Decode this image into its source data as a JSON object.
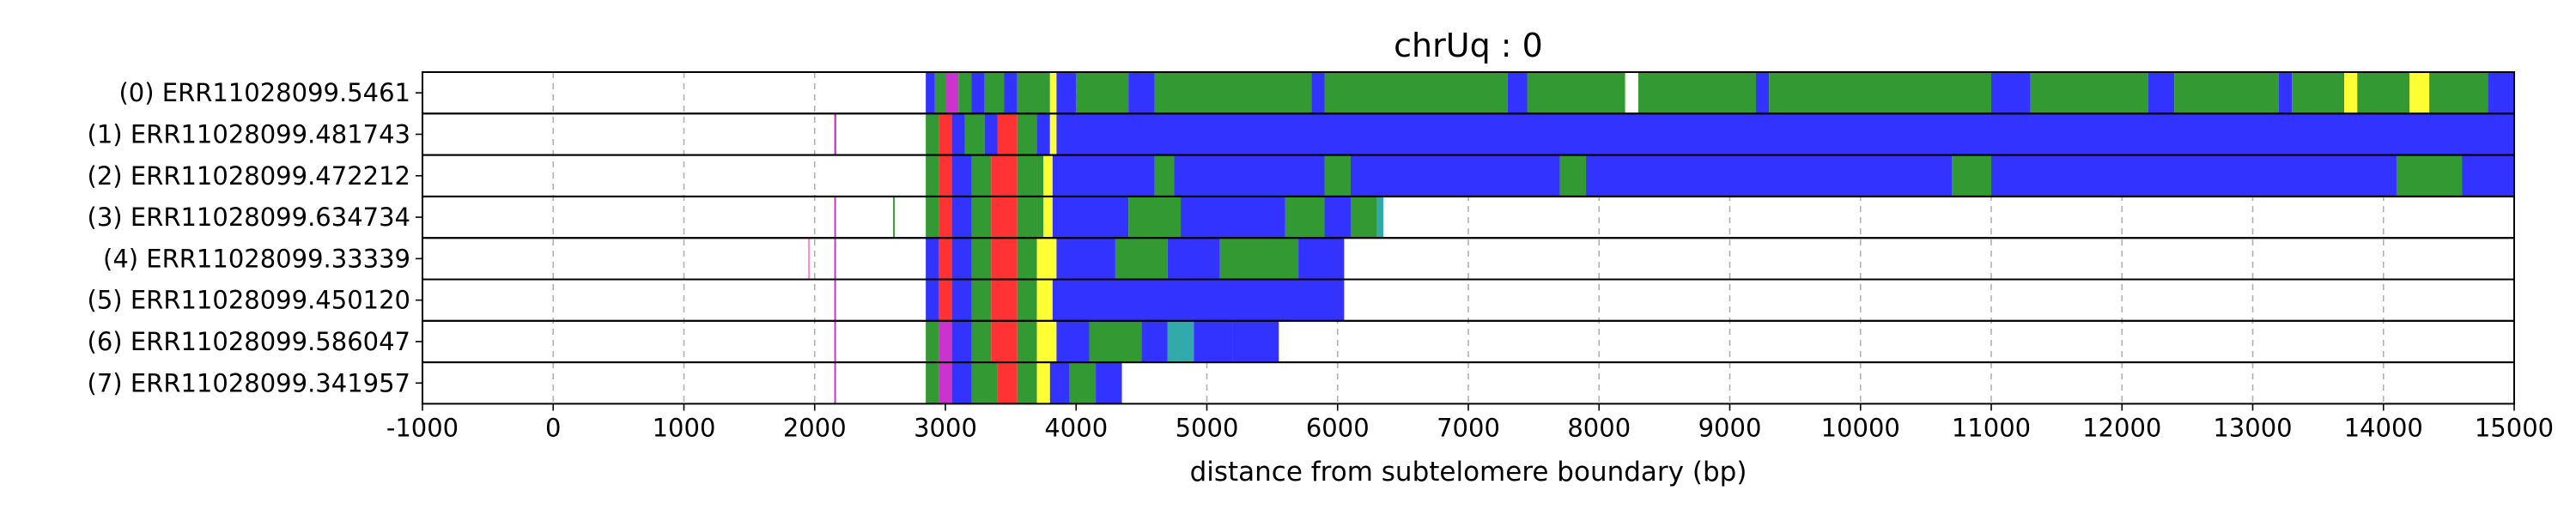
{
  "chart_data": {
    "type": "heatmap",
    "title": "chrUq : 0",
    "xlabel": "distance from subtelomere boundary (bp)",
    "ylabel": "",
    "xlim": [
      -1000,
      15000
    ],
    "xticks": [
      -1000,
      0,
      1000,
      2000,
      3000,
      4000,
      5000,
      6000,
      7000,
      8000,
      9000,
      10000,
      11000,
      12000,
      13000,
      14000,
      15000
    ],
    "grid": "vertical dashed",
    "colors": {
      "blue": "#3333ff",
      "green": "#339933",
      "yellow": "#ffff33",
      "red": "#ff3333",
      "magenta": "#cc33cc",
      "cyan": "#33aaaa",
      "white": "#ffffff",
      "lightgray": "#dddddd",
      "pink": "#ff88cc"
    },
    "rows": [
      {
        "label": "(0) ERR11028099.5461",
        "segments": [
          [
            2850,
            2920,
            "blue"
          ],
          [
            2920,
            3000,
            "green"
          ],
          [
            3000,
            3100,
            "magenta"
          ],
          [
            3100,
            3200,
            "green"
          ],
          [
            3200,
            3300,
            "blue"
          ],
          [
            3300,
            3450,
            "green"
          ],
          [
            3450,
            3550,
            "blue"
          ],
          [
            3550,
            3800,
            "green"
          ],
          [
            3800,
            3850,
            "yellow"
          ],
          [
            3850,
            4000,
            "blue"
          ],
          [
            4000,
            4400,
            "green"
          ],
          [
            4400,
            4600,
            "blue"
          ],
          [
            4600,
            5800,
            "green"
          ],
          [
            5800,
            5900,
            "blue"
          ],
          [
            5900,
            7300,
            "green"
          ],
          [
            7300,
            7450,
            "blue"
          ],
          [
            7450,
            8200,
            "green"
          ],
          [
            8200,
            8300,
            "white"
          ],
          [
            8300,
            9200,
            "green"
          ],
          [
            9200,
            9300,
            "blue"
          ],
          [
            9300,
            11000,
            "green"
          ],
          [
            11000,
            11300,
            "blue"
          ],
          [
            11300,
            12200,
            "green"
          ],
          [
            12200,
            12400,
            "blue"
          ],
          [
            12400,
            13200,
            "green"
          ],
          [
            13200,
            13300,
            "blue"
          ],
          [
            13300,
            13700,
            "green"
          ],
          [
            13700,
            13800,
            "yellow"
          ],
          [
            13800,
            14200,
            "green"
          ],
          [
            14200,
            14350,
            "yellow"
          ],
          [
            14350,
            14800,
            "green"
          ],
          [
            14800,
            15000,
            "blue"
          ]
        ]
      },
      {
        "label": "(1) ERR11028099.481743",
        "segments": [
          [
            2150,
            2165,
            "magenta"
          ],
          [
            2850,
            2950,
            "green"
          ],
          [
            2950,
            3050,
            "red"
          ],
          [
            3050,
            3150,
            "blue"
          ],
          [
            3150,
            3300,
            "green"
          ],
          [
            3300,
            3400,
            "blue"
          ],
          [
            3400,
            3550,
            "red"
          ],
          [
            3550,
            3700,
            "green"
          ],
          [
            3700,
            3800,
            "blue"
          ],
          [
            3800,
            3850,
            "yellow"
          ],
          [
            3850,
            15000,
            "blue"
          ]
        ]
      },
      {
        "label": "(2) ERR11028099.472212",
        "segments": [
          [
            2850,
            2950,
            "green"
          ],
          [
            2950,
            3050,
            "red"
          ],
          [
            3050,
            3200,
            "blue"
          ],
          [
            3200,
            3350,
            "green"
          ],
          [
            3350,
            3550,
            "red"
          ],
          [
            3550,
            3750,
            "green"
          ],
          [
            3750,
            3820,
            "yellow"
          ],
          [
            3820,
            4600,
            "blue"
          ],
          [
            4600,
            4750,
            "green"
          ],
          [
            4750,
            5900,
            "blue"
          ],
          [
            5900,
            6100,
            "green"
          ],
          [
            6100,
            7700,
            "blue"
          ],
          [
            7700,
            7900,
            "green"
          ],
          [
            7900,
            10700,
            "blue"
          ],
          [
            10700,
            11000,
            "green"
          ],
          [
            11000,
            14100,
            "blue"
          ],
          [
            14100,
            14600,
            "green"
          ],
          [
            14600,
            15000,
            "blue"
          ]
        ]
      },
      {
        "label": "(3) ERR11028099.634734",
        "segments": [
          [
            2150,
            2160,
            "magenta"
          ],
          [
            2600,
            2610,
            "green"
          ],
          [
            2850,
            2950,
            "green"
          ],
          [
            2950,
            3050,
            "red"
          ],
          [
            3050,
            3200,
            "blue"
          ],
          [
            3200,
            3350,
            "green"
          ],
          [
            3350,
            3550,
            "red"
          ],
          [
            3550,
            3750,
            "green"
          ],
          [
            3750,
            3820,
            "yellow"
          ],
          [
            3820,
            4400,
            "blue"
          ],
          [
            4400,
            4800,
            "green"
          ],
          [
            4800,
            5600,
            "blue"
          ],
          [
            5600,
            5900,
            "green"
          ],
          [
            5900,
            6100,
            "blue"
          ],
          [
            6100,
            6300,
            "green"
          ],
          [
            6300,
            6350,
            "cyan"
          ]
        ]
      },
      {
        "label": "(4) ERR11028099.33339",
        "segments": [
          [
            1950,
            1960,
            "pink"
          ],
          [
            2150,
            2160,
            "magenta"
          ],
          [
            2850,
            2950,
            "blue"
          ],
          [
            2950,
            3050,
            "red"
          ],
          [
            3050,
            3200,
            "blue"
          ],
          [
            3200,
            3350,
            "green"
          ],
          [
            3350,
            3550,
            "red"
          ],
          [
            3550,
            3700,
            "green"
          ],
          [
            3700,
            3850,
            "yellow"
          ],
          [
            3850,
            4300,
            "blue"
          ],
          [
            4300,
            4700,
            "green"
          ],
          [
            4700,
            5100,
            "blue"
          ],
          [
            5100,
            5700,
            "green"
          ],
          [
            5700,
            6050,
            "blue"
          ]
        ]
      },
      {
        "label": "(5) ERR11028099.450120",
        "segments": [
          [
            2150,
            2160,
            "magenta"
          ],
          [
            2850,
            2950,
            "blue"
          ],
          [
            2950,
            3050,
            "red"
          ],
          [
            3050,
            3200,
            "blue"
          ],
          [
            3200,
            3350,
            "green"
          ],
          [
            3350,
            3550,
            "red"
          ],
          [
            3550,
            3700,
            "green"
          ],
          [
            3700,
            3820,
            "yellow"
          ],
          [
            3820,
            6050,
            "blue"
          ]
        ]
      },
      {
        "label": "(6) ERR11028099.586047",
        "segments": [
          [
            2150,
            2160,
            "magenta"
          ],
          [
            2850,
            2950,
            "green"
          ],
          [
            2950,
            3050,
            "magenta"
          ],
          [
            3050,
            3200,
            "blue"
          ],
          [
            3200,
            3350,
            "green"
          ],
          [
            3350,
            3550,
            "red"
          ],
          [
            3550,
            3700,
            "green"
          ],
          [
            3700,
            3850,
            "yellow"
          ],
          [
            3850,
            4100,
            "blue"
          ],
          [
            4100,
            4500,
            "green"
          ],
          [
            4500,
            4700,
            "blue"
          ],
          [
            4700,
            4900,
            "cyan"
          ],
          [
            4900,
            5200,
            "blue"
          ],
          [
            5200,
            5550,
            "blue"
          ]
        ]
      },
      {
        "label": "(7) ERR11028099.341957",
        "segments": [
          [
            2150,
            2160,
            "magenta"
          ],
          [
            2850,
            2950,
            "green"
          ],
          [
            2950,
            3050,
            "magenta"
          ],
          [
            3050,
            3200,
            "blue"
          ],
          [
            3200,
            3400,
            "green"
          ],
          [
            3400,
            3550,
            "red"
          ],
          [
            3550,
            3700,
            "green"
          ],
          [
            3700,
            3800,
            "yellow"
          ],
          [
            3800,
            3950,
            "blue"
          ],
          [
            3950,
            4150,
            "green"
          ],
          [
            4150,
            4350,
            "blue"
          ]
        ]
      }
    ]
  }
}
